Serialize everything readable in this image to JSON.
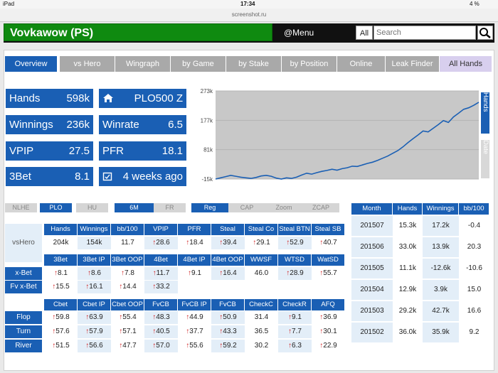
{
  "status": {
    "device": "iPad",
    "time": "17:34",
    "battery": "4 %"
  },
  "url": {
    "host": "screenshot.ru",
    "path": "leakbusters.com/player/Vovkawow"
  },
  "header": {
    "title": "Vovkawow (PS)",
    "menu": "@Menu",
    "all": "All",
    "search_placeholder": "Search"
  },
  "tabs": [
    "Overview",
    "vs Hero",
    "Wingraph",
    "by Game",
    "by Stake",
    "by Position",
    "Online",
    "Leak Finder",
    "All Hands"
  ],
  "stats": {
    "hands": {
      "label": "Hands",
      "value": "598k"
    },
    "game": {
      "value": "PLO500 Z"
    },
    "winnings": {
      "label": "Winnings",
      "value": "236k"
    },
    "winrate": {
      "label": "Winrate",
      "value": "6.5"
    },
    "vpip": {
      "label": "VPIP",
      "value": "27.5"
    },
    "pfr": {
      "label": "PFR",
      "value": "18.1"
    },
    "threebet": {
      "label": "3Bet",
      "value": "8.1"
    },
    "lastseen": {
      "value": "4 weeks ago"
    }
  },
  "chart_data": {
    "type": "line",
    "y_ticks": [
      "273k",
      "177k",
      "81k",
      "-15k"
    ],
    "ylim": [
      -15000,
      273000
    ],
    "series": [
      {
        "values": [
          -15000,
          -11000,
          -7000,
          -3000,
          -6000,
          -9000,
          -11000,
          -13000,
          -10000,
          -5000,
          -3000,
          -6000,
          -12000,
          -15000,
          -11000,
          -13000,
          -9000,
          -2000,
          4000,
          1000,
          6000,
          10000,
          13000,
          17000,
          14000,
          19000,
          22000,
          27000,
          26000,
          31000,
          36000,
          40000,
          46000,
          53000,
          60000,
          69000,
          78000,
          90000,
          104000,
          117000,
          129000,
          142000,
          139000,
          151000,
          163000,
          176000,
          170000,
          188000,
          200000,
          213000,
          218000,
          226000,
          236000
        ]
      }
    ],
    "side_tabs": [
      "Hands",
      "Date"
    ]
  },
  "filters": [
    "NLHE",
    "PLO",
    "HU",
    "6M",
    "FR",
    "Reg",
    "CAP",
    "Zoom",
    "ZCAP"
  ],
  "row1": {
    "label": "vsHero",
    "headers": [
      "Hands",
      "Winnings",
      "bb/100",
      "VPIP",
      "PFR",
      "Steal",
      "Steal Co",
      "Steal BTN",
      "Steal SB"
    ],
    "values": [
      "204k",
      "154k",
      "11.7",
      "28.6",
      "18.4",
      "39.4",
      "29.1",
      "52.9",
      "40.7"
    ]
  },
  "row2": {
    "headers": [
      "3Bet",
      "3Bet IP",
      "3Bet OOP",
      "4Bet",
      "4Bet IP",
      "4Bet OOP",
      "WWSF",
      "WTSD",
      "WatSD"
    ],
    "xbet": {
      "label": "x-Bet",
      "values": [
        "8.1",
        "8.6",
        "7.8",
        "11.7",
        "9.1",
        "16.4",
        "46.0",
        "28.9",
        "55.7"
      ]
    },
    "fvxbet": {
      "label": "Fv x-Bet",
      "values": [
        "15.5",
        "16.1",
        "14.4",
        "33.2"
      ]
    }
  },
  "row3": {
    "headers": [
      "Cbet",
      "Cbet IP",
      "Cbet OOP",
      "FvCB",
      "FvCB IP",
      "FvCB OOP",
      "CheckC",
      "CheckR",
      "AFQ"
    ],
    "flop": {
      "label": "Flop",
      "values": [
        "59.8",
        "63.9",
        "55.4",
        "48.3",
        "44.9",
        "50.9",
        "31.4",
        "9.1",
        "36.9"
      ]
    },
    "turn": {
      "label": "Turn",
      "values": [
        "57.6",
        "57.9",
        "57.1",
        "40.5",
        "37.7",
        "43.3",
        "36.5",
        "7.7",
        "30.1"
      ]
    },
    "river": {
      "label": "River",
      "values": [
        "51.5",
        "56.6",
        "47.7",
        "57.0",
        "55.6",
        "59.2",
        "30.2",
        "6.3",
        "22.9"
      ]
    }
  },
  "monthly": {
    "headers": [
      "Month",
      "Hands",
      "Winnings",
      "bb/100"
    ],
    "rows": [
      [
        "201507",
        "15.3k",
        "17.2k",
        "-0.4"
      ],
      [
        "201506",
        "33.0k",
        "13.9k",
        "20.3"
      ],
      [
        "201505",
        "11.1k",
        "-12.6k",
        "-10.6"
      ],
      [
        "201504",
        "12.9k",
        "3.9k",
        "15.0"
      ],
      [
        "201503",
        "29.2k",
        "42.7k",
        "16.6"
      ],
      [
        "201502",
        "36.0k",
        "35.9k",
        "9.2"
      ]
    ]
  }
}
